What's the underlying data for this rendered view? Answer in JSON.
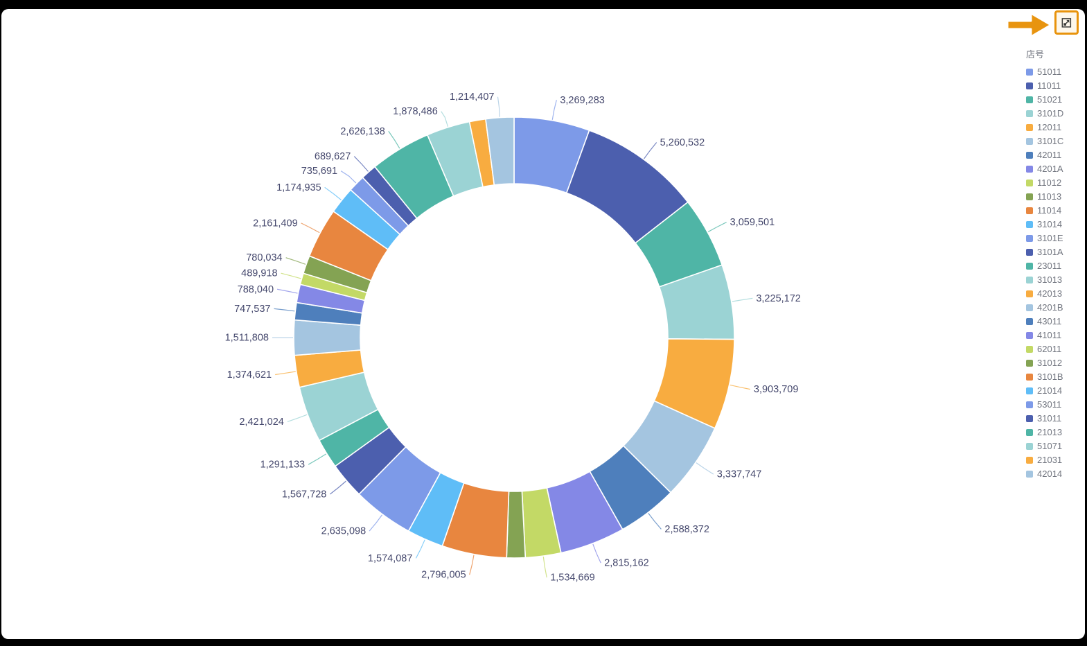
{
  "window": {
    "background_color": "#000000",
    "canvas_color": "#ffffff"
  },
  "annotation": {
    "arrow_color": "#e8940f",
    "highlight_border_color": "#e8930c",
    "highlight_fill_color": "#fdf7ec"
  },
  "icons": {
    "focus_mode": "focus-mode-icon",
    "annotation_arrow": "arrow-right-icon"
  },
  "chart_data": {
    "type": "donut",
    "legend_title": "店号",
    "legend_position": "right",
    "label_color": "#45486d",
    "palette": [
      "#7d9ae8",
      "#4c5fae",
      "#4fb5a6",
      "#9bd3d4",
      "#f8ac40",
      "#a4c5e0",
      "#4e7fbc",
      "#8488e6",
      "#c3d966",
      "#84a353",
      "#e8863f",
      "#5fbdf7"
    ],
    "slices": [
      {
        "label": "51011",
        "value": 3269283,
        "display": "3,269,283",
        "labeled": true
      },
      {
        "label": "11011",
        "value": 5260532,
        "display": "5,260,532",
        "labeled": true
      },
      {
        "label": "51021",
        "value": 3059501,
        "display": "3,059,501",
        "labeled": true
      },
      {
        "label": "3101D",
        "value": 3225172,
        "display": "3,225,172",
        "labeled": true
      },
      {
        "label": "12011",
        "value": 3903709,
        "display": "3,903,709",
        "labeled": true
      },
      {
        "label": "3101C",
        "value": 3337747,
        "display": "3,337,747",
        "labeled": true
      },
      {
        "label": "42011",
        "value": 2588372,
        "display": "2,588,372",
        "labeled": true
      },
      {
        "label": "4201A",
        "value": 2815162,
        "display": "2,815,162",
        "labeled": true
      },
      {
        "label": "11012",
        "value": 1534669,
        "display": "1,534,669",
        "labeled": true
      },
      {
        "label": "11013",
        "value": 800000,
        "labeled": false,
        "value_estimated": true
      },
      {
        "label": "11014",
        "value": 2796005,
        "display": "2,796,005",
        "labeled": true
      },
      {
        "label": "31014",
        "value": 1574087,
        "display": "1,574,087",
        "labeled": true
      },
      {
        "label": "3101E",
        "value": 2635098,
        "display": "2,635,098",
        "labeled": true
      },
      {
        "label": "3101A",
        "value": 1567728,
        "display": "1,567,728",
        "labeled": true
      },
      {
        "label": "23011",
        "value": 1291133,
        "display": "1,291,133",
        "labeled": true
      },
      {
        "label": "31013",
        "value": 2421024,
        "display": "2,421,024",
        "labeled": true
      },
      {
        "label": "42013",
        "value": 1374621,
        "display": "1,374,621",
        "labeled": true
      },
      {
        "label": "4201B",
        "value": 1511808,
        "display": "1,511,808",
        "labeled": true
      },
      {
        "label": "43011",
        "value": 747537,
        "display": "747,537",
        "labeled": true
      },
      {
        "label": "41011",
        "value": 788040,
        "display": "788,040",
        "labeled": true
      },
      {
        "label": "62011",
        "value": 489918,
        "display": "489,918",
        "labeled": true
      },
      {
        "label": "31012",
        "value": 780034,
        "display": "780,034",
        "labeled": true
      },
      {
        "label": "3101B",
        "value": 2161409,
        "display": "2,161,409",
        "labeled": true
      },
      {
        "label": "21014",
        "value": 1174935,
        "display": "1,174,935",
        "labeled": true
      },
      {
        "label": "53011",
        "value": 735691,
        "display": "735,691",
        "labeled": true
      },
      {
        "label": "31011",
        "value": 689627,
        "display": "689,627",
        "labeled": true
      },
      {
        "label": "21013",
        "value": 2626138,
        "display": "2,626,138",
        "labeled": true
      },
      {
        "label": "51071",
        "value": 1878486,
        "display": "1,878,486",
        "labeled": true
      },
      {
        "label": "21031",
        "value": 700000,
        "labeled": false,
        "value_estimated": true
      },
      {
        "label": "42014",
        "value": 1214407,
        "display": "1,214,407",
        "labeled": true
      }
    ]
  }
}
